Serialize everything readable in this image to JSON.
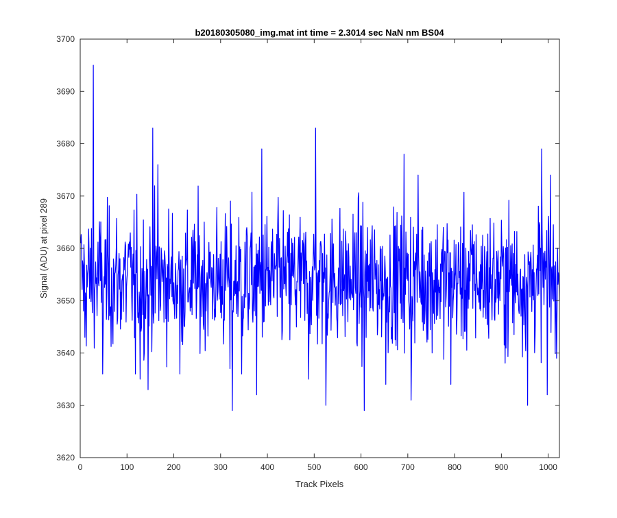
{
  "chart_data": {
    "type": "line",
    "title": "b20180305080_img.mat int time = 2.3014 sec  NaN nm BS04",
    "xlabel": "Track Pixels",
    "ylabel": "Signal (ADU) at pixel 289",
    "xlim": [
      0,
      1024
    ],
    "ylim": [
      3620,
      3700
    ],
    "xticks": [
      0,
      100,
      200,
      300,
      400,
      500,
      600,
      700,
      800,
      900,
      1000
    ],
    "yticks": [
      3620,
      3630,
      3640,
      3650,
      3660,
      3670,
      3680,
      3690,
      3700
    ],
    "grid": false,
    "box": true,
    "series": [
      {
        "color": "#0000ff",
        "n_points": 1024,
        "noise_mean": 3654,
        "noise_sd": 6.5,
        "key_points": [
          {
            "x": 1,
            "y": 3661
          },
          {
            "x": 10,
            "y": 3643
          },
          {
            "x": 28,
            "y": 3695
          },
          {
            "x": 48,
            "y": 3636
          },
          {
            "x": 118,
            "y": 3636
          },
          {
            "x": 128,
            "y": 3635
          },
          {
            "x": 145,
            "y": 3633
          },
          {
            "x": 155,
            "y": 3683
          },
          {
            "x": 166,
            "y": 3676
          },
          {
            "x": 213,
            "y": 3636
          },
          {
            "x": 320,
            "y": 3637
          },
          {
            "x": 325,
            "y": 3629
          },
          {
            "x": 345,
            "y": 3636
          },
          {
            "x": 377,
            "y": 3632
          },
          {
            "x": 388,
            "y": 3679
          },
          {
            "x": 488,
            "y": 3635
          },
          {
            "x": 503,
            "y": 3683
          },
          {
            "x": 525,
            "y": 3630
          },
          {
            "x": 607,
            "y": 3629
          },
          {
            "x": 653,
            "y": 3634
          },
          {
            "x": 692,
            "y": 3678
          },
          {
            "x": 707,
            "y": 3631
          },
          {
            "x": 722,
            "y": 3674
          },
          {
            "x": 792,
            "y": 3634
          },
          {
            "x": 956,
            "y": 3630
          },
          {
            "x": 986,
            "y": 3679
          },
          {
            "x": 998,
            "y": 3632
          },
          {
            "x": 1005,
            "y": 3674
          },
          {
            "x": 1018,
            "y": 3639
          },
          {
            "x": 1024,
            "y": 3650
          }
        ]
      }
    ]
  }
}
